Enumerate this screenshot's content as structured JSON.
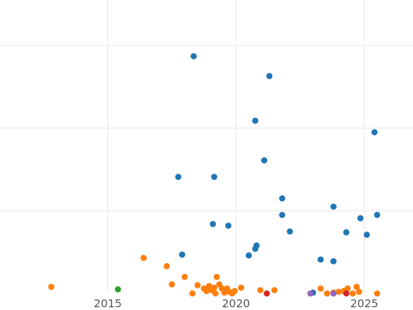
{
  "chart_data": {
    "type": "scatter",
    "title": "",
    "xlabel": "",
    "ylabel": "",
    "xlim": [
      2010.8,
      2026.9
    ],
    "ylim": [
      0,
      3.55
    ],
    "x_ticks": [
      2015,
      2020,
      2025
    ],
    "x_tick_labels": [
      "2015",
      "2020",
      "2025"
    ],
    "y_grid_values": [
      1,
      2,
      3
    ],
    "grid": true,
    "legend": "none",
    "series": [
      {
        "color": "#1f77b4",
        "points": [
          {
            "x": 2018.35,
            "y": 2.87
          },
          {
            "x": 2021.3,
            "y": 2.63
          },
          {
            "x": 2020.75,
            "y": 2.09
          },
          {
            "x": 2025.4,
            "y": 1.95
          },
          {
            "x": 2021.1,
            "y": 1.61
          },
          {
            "x": 2017.75,
            "y": 1.41
          },
          {
            "x": 2019.15,
            "y": 1.41
          },
          {
            "x": 2021.8,
            "y": 1.15
          },
          {
            "x": 2023.8,
            "y": 1.05
          },
          {
            "x": 2021.8,
            "y": 0.95
          },
          {
            "x": 2024.85,
            "y": 0.91
          },
          {
            "x": 2025.5,
            "y": 0.95
          },
          {
            "x": 2019.1,
            "y": 0.84
          },
          {
            "x": 2019.7,
            "y": 0.82
          },
          {
            "x": 2022.1,
            "y": 0.75
          },
          {
            "x": 2024.3,
            "y": 0.74
          },
          {
            "x": 2025.1,
            "y": 0.71
          },
          {
            "x": 2020.8,
            "y": 0.58
          },
          {
            "x": 2020.75,
            "y": 0.54
          },
          {
            "x": 2020.5,
            "y": 0.46
          },
          {
            "x": 2017.9,
            "y": 0.47
          },
          {
            "x": 2023.3,
            "y": 0.41
          },
          {
            "x": 2023.8,
            "y": 0.39
          },
          {
            "x": 2023.0,
            "y": 0.01
          }
        ]
      },
      {
        "color": "#ff7f0e",
        "points": [
          {
            "x": 2012.8,
            "y": 0.08
          },
          {
            "x": 2016.4,
            "y": 0.43
          },
          {
            "x": 2017.3,
            "y": 0.33
          },
          {
            "x": 2018.0,
            "y": 0.2
          },
          {
            "x": 2017.5,
            "y": 0.11
          },
          {
            "x": 2018.3,
            "y": 0.0
          },
          {
            "x": 2018.5,
            "y": 0.1
          },
          {
            "x": 2018.75,
            "y": 0.06
          },
          {
            "x": 2018.85,
            "y": 0.03
          },
          {
            "x": 2018.95,
            "y": 0.09
          },
          {
            "x": 2019.05,
            "y": 0.04
          },
          {
            "x": 2019.15,
            "y": 0.07
          },
          {
            "x": 2019.25,
            "y": 0.2
          },
          {
            "x": 2019.35,
            "y": 0.11
          },
          {
            "x": 2019.45,
            "y": 0.06
          },
          {
            "x": 2019.55,
            "y": 0.01
          },
          {
            "x": 2019.65,
            "y": 0.06
          },
          {
            "x": 2019.75,
            "y": 0.02
          },
          {
            "x": 2019.85,
            "y": 0.0
          },
          {
            "x": 2019.95,
            "y": 0.03
          },
          {
            "x": 2020.2,
            "y": 0.07
          },
          {
            "x": 2020.95,
            "y": 0.04
          },
          {
            "x": 2021.5,
            "y": 0.04
          },
          {
            "x": 2019.2,
            "y": 0.0
          },
          {
            "x": 2023.3,
            "y": 0.06
          },
          {
            "x": 2023.55,
            "y": 0.0
          },
          {
            "x": 2023.8,
            "y": 0.01
          },
          {
            "x": 2024.0,
            "y": 0.02
          },
          {
            "x": 2024.2,
            "y": 0.03
          },
          {
            "x": 2024.35,
            "y": 0.06
          },
          {
            "x": 2024.55,
            "y": 0.0
          },
          {
            "x": 2024.7,
            "y": 0.08
          },
          {
            "x": 2024.8,
            "y": 0.02
          },
          {
            "x": 2025.5,
            "y": 0.0
          }
        ]
      },
      {
        "color": "#2ca02c",
        "points": [
          {
            "x": 2015.4,
            "y": 0.05
          }
        ]
      },
      {
        "color": "#d62728",
        "points": [
          {
            "x": 2021.2,
            "y": 0.0
          },
          {
            "x": 2024.3,
            "y": 0.0
          }
        ]
      },
      {
        "color": "#9467bd",
        "points": [
          {
            "x": 2022.9,
            "y": 0.0
          },
          {
            "x": 2023.8,
            "y": 0.0
          }
        ]
      }
    ]
  }
}
